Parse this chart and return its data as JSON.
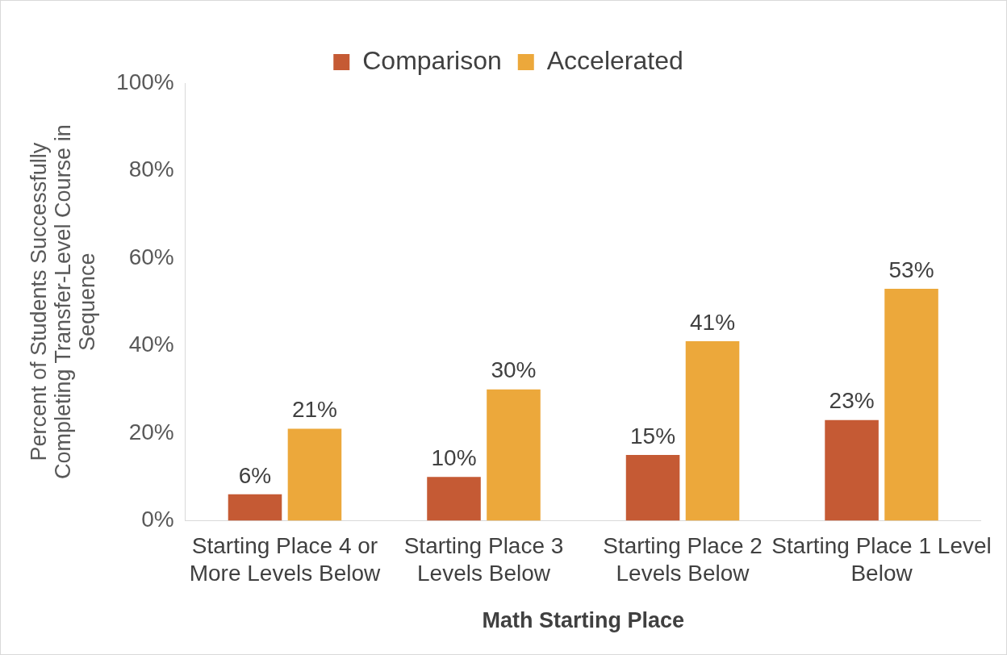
{
  "chart_data": {
    "type": "bar",
    "xlabel": "Math Starting Place",
    "ylabel": "Percent of Students Successfully Completing Transfer-Level Course in Sequence",
    "categories": [
      "Starting Place 4 or More Levels Below",
      "Starting Place 3 Levels Below",
      "Starting Place 2 Levels Below",
      "Starting Place 1 Level Below"
    ],
    "series": [
      {
        "name": "Comparison",
        "color": "#c55a34",
        "values": [
          6,
          10,
          15,
          23
        ],
        "value_labels": [
          "6%",
          "10%",
          "15%",
          "23%"
        ]
      },
      {
        "name": "Accelerated",
        "color": "#eca83b",
        "values": [
          21,
          30,
          41,
          53
        ],
        "value_labels": [
          "21%",
          "30%",
          "41%",
          "53%"
        ]
      }
    ],
    "ylim": [
      0,
      100
    ],
    "yticks": [
      {
        "value": 0,
        "label": "0%"
      },
      {
        "value": 20,
        "label": "20%"
      },
      {
        "value": 40,
        "label": "40%"
      },
      {
        "value": 60,
        "label": "60%"
      },
      {
        "value": 80,
        "label": "80%"
      },
      {
        "value": 100,
        "label": "100%"
      }
    ],
    "grid": false,
    "legend": "top"
  }
}
